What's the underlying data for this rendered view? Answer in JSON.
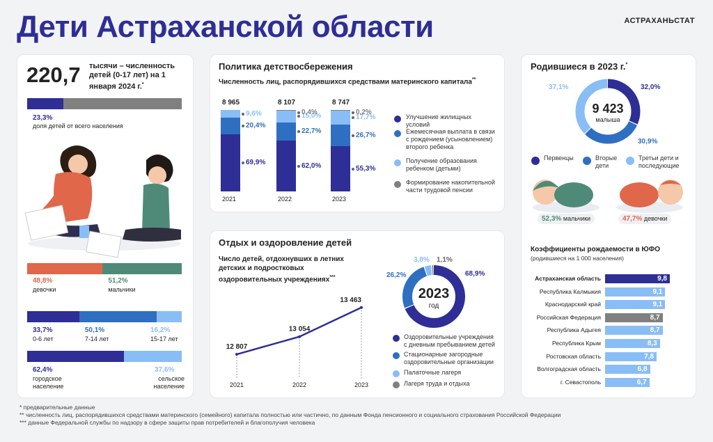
{
  "header": {
    "title": "Дети Астраханской области",
    "brand": "АСТРАХАНЬСТАТ"
  },
  "colors": {
    "dark": "#2e2e96",
    "mid": "#2f6fc2",
    "light": "#89bdf5",
    "gray": "#808080",
    "orange": "#e0674a",
    "green": "#4f8a78"
  },
  "left": {
    "big_number": "220,7",
    "big_caption": "тысячи – численность детей (0-17 лет) на 1 января 2024 г.",
    "big_caption_mark": "*",
    "share": {
      "value": 23.3,
      "label": "23,3%",
      "caption": "доля детей от всего населения"
    },
    "gender": [
      {
        "name": "девочки",
        "value": 48.8,
        "label": "48,8%"
      },
      {
        "name": "мальчики",
        "value": 51.2,
        "label": "51,2%"
      }
    ],
    "age": [
      {
        "name": "0-6 лет",
        "value": 33.7,
        "label": "33,7%"
      },
      {
        "name": "7-14 лет",
        "value": 50.1,
        "label": "50,1%"
      },
      {
        "name": "15-17 лет",
        "value": 16.2,
        "label": "16,2%"
      }
    ],
    "settlement": [
      {
        "name": "городское население",
        "value": 62.4,
        "label": "62,4%"
      },
      {
        "name": "сельское население",
        "value": 37.6,
        "label": "37,6%"
      }
    ]
  },
  "policy": {
    "title": "Политика детствосбережения",
    "subtitle": "Численность лиц, распорядившихся средствами материнского капитала",
    "subtitle_mark": "**"
  },
  "rest": {
    "title": "Отдых и оздоровление детей",
    "line_title": "Число детей, отдохнувших в летних детских и подростковых оздоровительных учреждениях",
    "line_title_mark": "***",
    "donut_year": "2023",
    "donut_caption": "год"
  },
  "births": {
    "title": "Родившиеся в 2023 г.",
    "title_mark": "*",
    "total": "9 423",
    "total_caption": "малыша",
    "boys": {
      "label": "52,3%",
      "name": "мальчики"
    },
    "girls": {
      "label": "47,7%",
      "name": "девочки"
    },
    "fert_title": "Коэффициенты рождаемости в ЮФО",
    "fert_subtitle": "(родившиеся на 1 000 населения)"
  },
  "footnotes": [
    "* предварительные данные",
    "** численность лиц, распорядившихся средствами материнского (семейного) капитала полностью или частично, по данным Фонда пенсионного и социального страхования Российской Федерации",
    "*** данные Федеральной службы по надзору в сфере защиты прав потребителей и благополучия человека"
  ],
  "chart_data": [
    {
      "type": "bar",
      "title": "Численность лиц, распорядившихся средствами материнского капитала",
      "categories": [
        "2021",
        "2022",
        "2023"
      ],
      "totals": [
        "8 965",
        "8 107",
        "8 747"
      ],
      "series": [
        {
          "name": "Улучшение жилищных условий",
          "values": [
            69.9,
            62.0,
            55.3
          ],
          "labels": [
            "69,9%",
            "62,0%",
            "55,3%"
          ]
        },
        {
          "name": "Ежемесячная выплата в связи с рождением (усыновлением) второго ребенка",
          "values": [
            20.4,
            22.7,
            26.7
          ],
          "labels": [
            "20,4%",
            "22,7%",
            "26,7%"
          ]
        },
        {
          "name": "Получение образования ребенком (детьми)",
          "values": [
            9.6,
            15.0,
            17.7
          ],
          "labels": [
            "9,6%",
            "15,0%",
            "17,7%"
          ]
        },
        {
          "name": "Формирование накопительной части трудовой пенсии",
          "values": [
            0,
            0.4,
            0.2
          ],
          "labels": [
            "",
            "0,4%",
            "0,2%"
          ]
        }
      ]
    },
    {
      "type": "line",
      "title": "Число детей, отдохнувших в летних детских и подростковых оздоровительных учреждениях",
      "x": [
        "2021",
        "2022",
        "2023"
      ],
      "values": [
        12807,
        13054,
        13463
      ],
      "labels": [
        "12 807",
        "13 054",
        "13 463"
      ]
    },
    {
      "type": "pie",
      "title": "2023 год",
      "categories": [
        "Оздоровительные учреждения с дневным пребыванием детей",
        "Стационарные загородные оздоровительные организации",
        "Палаточные лагеря",
        "Лагеря труда и отдыха"
      ],
      "values": [
        68.9,
        26.2,
        3.8,
        1.1
      ],
      "labels": [
        "68,9%",
        "26,2%",
        "3,8%",
        "1,1%"
      ]
    },
    {
      "type": "pie",
      "title": "Родившиеся в 2023 г.",
      "categories": [
        "Первенцы",
        "Вторые дети",
        "Третьи дети и последующие"
      ],
      "values": [
        32.0,
        30.9,
        37.1
      ],
      "labels": [
        "32,0%",
        "30,9%",
        "37,1%"
      ]
    },
    {
      "type": "bar",
      "title": "Коэффициенты рождаемости в ЮФО",
      "categories": [
        "Астраханская область",
        "Республика Калмыкия",
        "Краснодарский край",
        "Российская Федерация",
        "Республика Адыгея",
        "Республика Крым",
        "Ростовская область",
        "Волгоградская область",
        "г. Севастополь"
      ],
      "values": [
        9.8,
        9.1,
        9.1,
        8.7,
        8.7,
        8.3,
        7.8,
        6.8,
        6.7
      ],
      "labels": [
        "9,8",
        "9,1",
        "9,1",
        "8,7",
        "8,7",
        "8,3",
        "7,8",
        "6,8",
        "6,7"
      ],
      "xlim": [
        0,
        9.8
      ]
    }
  ]
}
